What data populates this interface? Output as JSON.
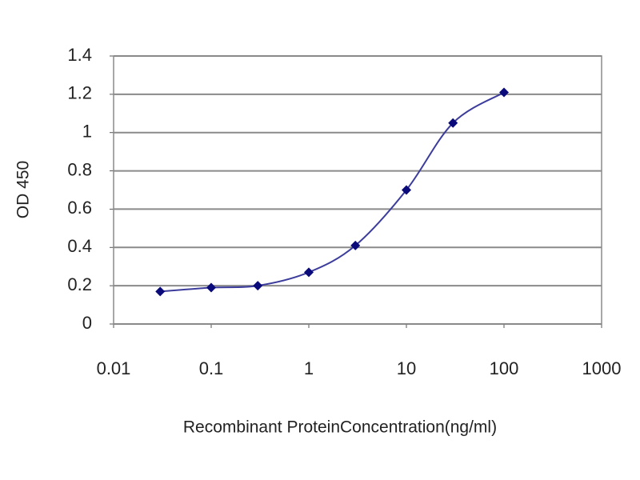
{
  "chart_data": {
    "type": "line",
    "x_label": "Recombinant ProteinConcentration(ng/ml)",
    "y_label": "OD 450",
    "x": [
      0.03,
      0.1,
      0.3,
      1,
      3,
      10,
      30,
      100
    ],
    "series": [
      {
        "color": "#3c3c9c",
        "marker_color": "#0a0a7a",
        "values": [
          0.17,
          0.19,
          0.2,
          0.27,
          0.41,
          0.7,
          1.05,
          1.21
        ]
      }
    ],
    "xscale": "log",
    "xlim": [
      0.01,
      1000
    ],
    "xticks": [
      0.01,
      0.1,
      1,
      10,
      100,
      1000
    ],
    "ylim": [
      0,
      1.4
    ],
    "yticks": [
      0,
      0.2,
      0.4,
      0.6,
      0.8,
      1,
      1.2,
      1.4
    ],
    "grid": true
  }
}
